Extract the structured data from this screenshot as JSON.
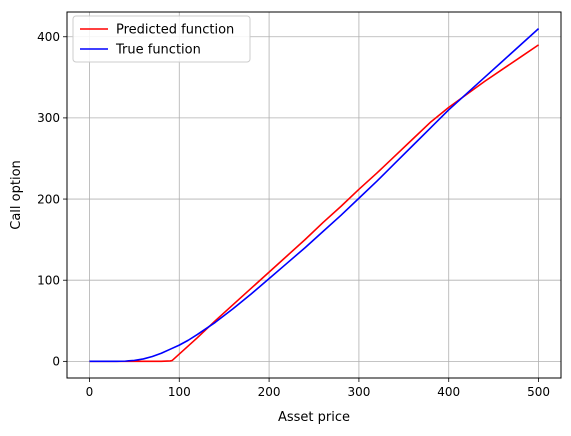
{
  "chart_data": {
    "type": "line",
    "title": "",
    "xlabel": "Asset price",
    "ylabel": "Call option",
    "xlim": [
      -25,
      525
    ],
    "ylim": [
      -20.5,
      430.5
    ],
    "xticks": [
      0,
      100,
      200,
      300,
      400,
      500
    ],
    "yticks": [
      0,
      100,
      200,
      300,
      400
    ],
    "grid": true,
    "legend_position": "top-left",
    "series": [
      {
        "name": "Predicted function",
        "color": "#ff0000",
        "x": [
          0,
          10,
          20,
          30,
          40,
          50,
          60,
          70,
          80,
          90,
          92,
          100,
          120,
          140,
          160,
          180,
          200,
          220,
          240,
          260,
          280,
          300,
          320,
          340,
          360,
          380,
          400,
          420,
          440,
          460,
          480,
          500
        ],
        "y": [
          0,
          0,
          0,
          0,
          0,
          0,
          0,
          0,
          0,
          0.5,
          1,
          9,
          29,
          50,
          70,
          90,
          110,
          130,
          150,
          171,
          191,
          212,
          232,
          253,
          274,
          295,
          313,
          329,
          345,
          360,
          375,
          390
        ]
      },
      {
        "name": "True function",
        "color": "#0000ff",
        "x": [
          0,
          10,
          20,
          30,
          40,
          50,
          60,
          70,
          80,
          90,
          100,
          110,
          120,
          140,
          160,
          180,
          200,
          220,
          240,
          260,
          280,
          300,
          320,
          340,
          360,
          380,
          400,
          420,
          440,
          460,
          480,
          500
        ],
        "y": [
          0,
          0,
          0,
          0,
          0.3,
          1.2,
          3,
          6,
          10,
          15,
          20,
          26,
          33,
          48,
          65,
          83,
          102,
          121,
          140,
          160,
          180,
          201,
          222,
          244,
          266,
          288,
          310,
          330,
          350,
          370,
          390,
          410
        ]
      }
    ]
  }
}
